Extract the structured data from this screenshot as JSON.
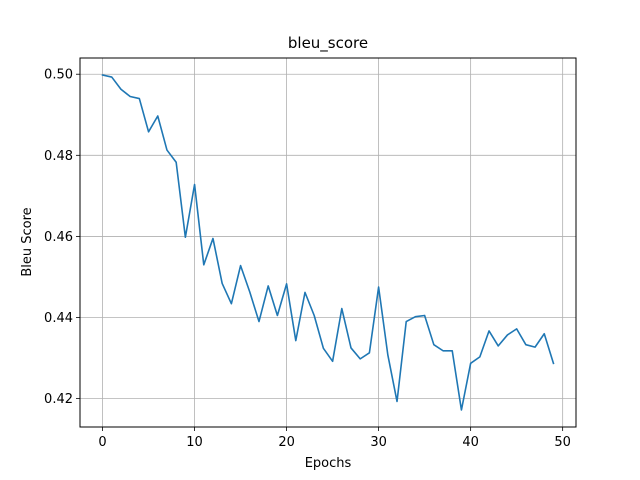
{
  "chart_data": {
    "type": "line",
    "title": "bleu_score",
    "xlabel": "Epochs",
    "ylabel": "Bleu Score",
    "xlim": [
      -2.45,
      51.45
    ],
    "ylim": [
      0.413,
      0.504
    ],
    "xticks": [
      0,
      10,
      20,
      30,
      40,
      50
    ],
    "yticks": [
      0.42,
      0.44,
      0.46,
      0.48,
      0.5
    ],
    "ytick_labels": [
      "0.42",
      "0.44",
      "0.46",
      "0.48",
      "0.50"
    ],
    "grid": true,
    "line_color": "#1f77b4",
    "x": [
      0,
      1,
      2,
      3,
      4,
      5,
      6,
      7,
      8,
      9,
      10,
      11,
      12,
      13,
      14,
      15,
      16,
      17,
      18,
      19,
      20,
      21,
      22,
      23,
      24,
      25,
      26,
      27,
      28,
      29,
      30,
      31,
      32,
      33,
      34,
      35,
      36,
      37,
      38,
      39,
      40,
      41,
      42,
      43,
      44,
      45,
      46,
      47,
      48,
      49
    ],
    "series": [
      {
        "values": [
          0.4998,
          0.4993,
          0.4963,
          0.4945,
          0.494,
          0.4858,
          0.4897,
          0.4813,
          0.4783,
          0.4598,
          0.4728,
          0.453,
          0.4595,
          0.4484,
          0.4434,
          0.4528,
          0.4463,
          0.439,
          0.4478,
          0.4405,
          0.4483,
          0.4343,
          0.4462,
          0.4405,
          0.4324,
          0.4292,
          0.4422,
          0.4325,
          0.4298,
          0.4313,
          0.4475,
          0.4308,
          0.4193,
          0.439,
          0.4402,
          0.4405,
          0.4333,
          0.4318,
          0.4318,
          0.4172,
          0.4287,
          0.4303,
          0.4367,
          0.433,
          0.4357,
          0.4372,
          0.4333,
          0.4327,
          0.436,
          0.4287
        ]
      }
    ]
  }
}
